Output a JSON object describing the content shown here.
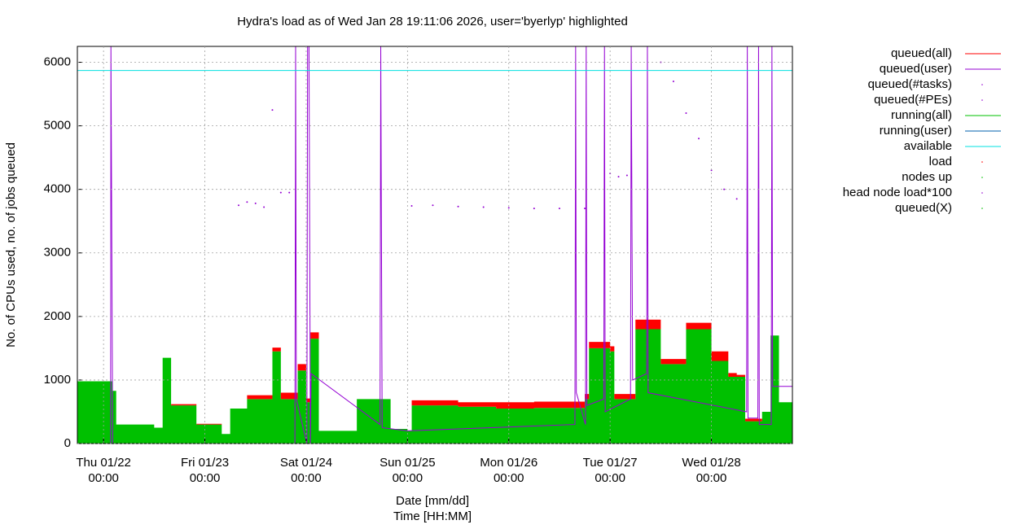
{
  "chart_data": {
    "type": "area",
    "title": "Hydra's load as of Wed Jan 28 19:11:06 2026, user='byerlyp' highlighted",
    "xlabel": "Date [mm/dd]",
    "xlabel2": "Time [HH:MM]",
    "ylabel": "No. of CPUs used, no. of jobs queued",
    "xlim": [
      "01/21 17:48",
      "01/28 19:11"
    ],
    "ylim": [
      0,
      6250
    ],
    "yticks": [
      0,
      1000,
      2000,
      3000,
      4000,
      5000,
      6000
    ],
    "xticks": [
      {
        "value": "01/22 00:00",
        "label": [
          "Thu 01/22",
          "00:00"
        ]
      },
      {
        "value": "01/23 00:00",
        "label": [
          "Fri 01/23",
          "00:00"
        ]
      },
      {
        "value": "01/24 00:00",
        "label": [
          "Sat 01/24",
          "00:00"
        ]
      },
      {
        "value": "01/25 00:00",
        "label": [
          "Sun 01/25",
          "00:00"
        ]
      },
      {
        "value": "01/26 00:00",
        "label": [
          "Mon 01/26",
          "00:00"
        ]
      },
      {
        "value": "01/27 00:00",
        "label": [
          "Tue 01/27",
          "00:00"
        ]
      },
      {
        "value": "01/28 00:00",
        "label": [
          "Wed 01/28",
          "00:00"
        ]
      }
    ],
    "grid": true,
    "legend": "right",
    "series": [
      {
        "name": "queued(all)",
        "color": "#ff0000",
        "style": "area",
        "stacked": true,
        "x": [
          "01/21 17:48",
          "01/22 02:00",
          "01/22 03:00",
          "01/22 12:00",
          "01/22 14:00",
          "01/22 16:00",
          "01/22 22:00",
          "01/23 04:00",
          "01/23 06:00",
          "01/23 10:00",
          "01/23 16:00",
          "01/23 18:00",
          "01/23 22:00",
          "01/24 00:00",
          "01/24 01:00",
          "01/24 03:00",
          "01/24 12:00",
          "01/24 20:00",
          "01/25 00:00",
          "01/25 01:00",
          "01/25 12:00",
          "01/25 21:00",
          "01/26 06:00",
          "01/26 18:00",
          "01/26 19:00",
          "01/27 00:00",
          "01/27 01:00",
          "01/27 06:00",
          "01/27 12:00",
          "01/27 18:00",
          "01/28 00:00",
          "01/28 04:00",
          "01/28 06:00",
          "01/28 08:00",
          "01/28 12:00",
          "01/28 14:00",
          "01/28 16:00",
          "01/28 19:11"
        ],
        "values": [
          0,
          0,
          0,
          0,
          0,
          20,
          10,
          0,
          0,
          60,
          60,
          100,
          100,
          60,
          100,
          0,
          0,
          0,
          0,
          80,
          70,
          100,
          100,
          80,
          100,
          80,
          80,
          150,
          80,
          100,
          150,
          60,
          30,
          40,
          0,
          0,
          0,
          0
        ]
      },
      {
        "name": "queued(user)",
        "color": "#9400d3",
        "style": "line",
        "x": [
          "01/21 17:48",
          "01/22 01:40",
          "01/22 01:45",
          "01/22 02:10",
          "01/23 21:20",
          "01/23 21:30",
          "01/23 21:40",
          "01/24 00:10",
          "01/24 00:20",
          "01/24 00:40",
          "01/24 01:00",
          "01/24 01:10",
          "01/24 17:30",
          "01/24 17:40",
          "01/24 18:00",
          "01/25 00:00",
          "01/26 15:40",
          "01/26 15:50",
          "01/26 16:00",
          "01/26 18:10",
          "01/26 18:20",
          "01/26 18:30",
          "01/26 22:30",
          "01/26 22:40",
          "01/26 22:50",
          "01/27 04:50",
          "01/27 05:00",
          "01/27 05:20",
          "01/27 08:40",
          "01/27 08:50",
          "01/27 09:00",
          "01/28 08:20",
          "01/28 08:30",
          "01/28 08:40",
          "01/28 11:00",
          "01/28 11:10",
          "01/28 11:20",
          "01/28 14:10",
          "01/28 14:20",
          "01/28 14:30",
          "01/28 19:11"
        ],
        "values": [
          0,
          0,
          6250,
          0,
          0,
          6250,
          700,
          0,
          6250,
          6250,
          0,
          1100,
          300,
          6250,
          250,
          200,
          300,
          6250,
          800,
          300,
          6250,
          600,
          700,
          6250,
          500,
          700,
          6250,
          1000,
          1100,
          6250,
          800,
          500,
          6250,
          400,
          400,
          6250,
          300,
          300,
          6250,
          900,
          900
        ]
      },
      {
        "name": "queued(#tasks)",
        "color": "#9400d3",
        "style": "points",
        "x": [
          "01/23 08:00",
          "01/23 10:00",
          "01/23 12:00",
          "01/23 14:00",
          "01/23 16:00",
          "01/23 18:00",
          "01/23 20:00",
          "01/25 01:00",
          "01/25 06:00",
          "01/25 12:00",
          "01/25 18:00",
          "01/26 00:00",
          "01/26 06:00",
          "01/26 12:00",
          "01/26 18:00",
          "01/27 00:00",
          "01/27 02:00",
          "01/27 04:00",
          "01/27 12:00",
          "01/27 15:00",
          "01/27 18:00",
          "01/27 21:00",
          "01/28 00:00",
          "01/28 03:00",
          "01/28 06:00"
        ],
        "values": [
          3750,
          3800,
          3780,
          3720,
          5250,
          3950,
          3950,
          3740,
          3750,
          3730,
          3720,
          3710,
          3700,
          3700,
          3700,
          4250,
          4200,
          4220,
          6000,
          5700,
          5200,
          4800,
          4300,
          4000,
          3850
        ]
      },
      {
        "name": "queued(#PEs)",
        "color": "#9400d3",
        "style": "points",
        "x": [],
        "values": []
      },
      {
        "name": "running(all)",
        "color": "#00c000",
        "style": "area",
        "x": [
          "01/21 17:48",
          "01/22 02:00",
          "01/22 03:00",
          "01/22 12:00",
          "01/22 14:00",
          "01/22 16:00",
          "01/22 22:00",
          "01/23 04:00",
          "01/23 06:00",
          "01/23 10:00",
          "01/23 16:00",
          "01/23 18:00",
          "01/23 22:00",
          "01/24 00:00",
          "01/24 01:00",
          "01/24 03:00",
          "01/24 12:00",
          "01/24 20:00",
          "01/25 00:00",
          "01/25 01:00",
          "01/25 12:00",
          "01/25 21:00",
          "01/26 06:00",
          "01/26 18:00",
          "01/26 19:00",
          "01/27 00:00",
          "01/27 01:00",
          "01/27 06:00",
          "01/27 12:00",
          "01/27 18:00",
          "01/28 00:00",
          "01/28 04:00",
          "01/28 06:00",
          "01/28 08:00",
          "01/28 12:00",
          "01/28 14:00",
          "01/28 16:00",
          "01/28 19:11"
        ],
        "values": [
          980,
          830,
          300,
          250,
          1350,
          600,
          300,
          150,
          550,
          700,
          1450,
          700,
          1150,
          650,
          1650,
          200,
          700,
          230,
          200,
          600,
          580,
          550,
          560,
          700,
          1500,
          1450,
          700,
          1800,
          1250,
          1800,
          1300,
          1050,
          1050,
          350,
          500,
          1700,
          650,
          800
        ]
      },
      {
        "name": "running(user)",
        "color": "#0060ad",
        "style": "line",
        "x": [],
        "values": []
      },
      {
        "name": "available",
        "color": "#00e0e0",
        "style": "line",
        "x": [
          "01/21 17:48",
          "01/28 19:11"
        ],
        "values": [
          5870,
          5870
        ]
      },
      {
        "name": "load",
        "color": "#ff0000",
        "style": "points",
        "x": [],
        "values": []
      },
      {
        "name": "nodes up",
        "color": "#00c000",
        "style": "points",
        "x": [],
        "values": []
      },
      {
        "name": "head node load*100",
        "color": "#9400d3",
        "style": "points",
        "x": [],
        "values": []
      },
      {
        "name": "queued(X)",
        "color": "#00c000",
        "style": "points",
        "x": [],
        "values": []
      }
    ]
  }
}
